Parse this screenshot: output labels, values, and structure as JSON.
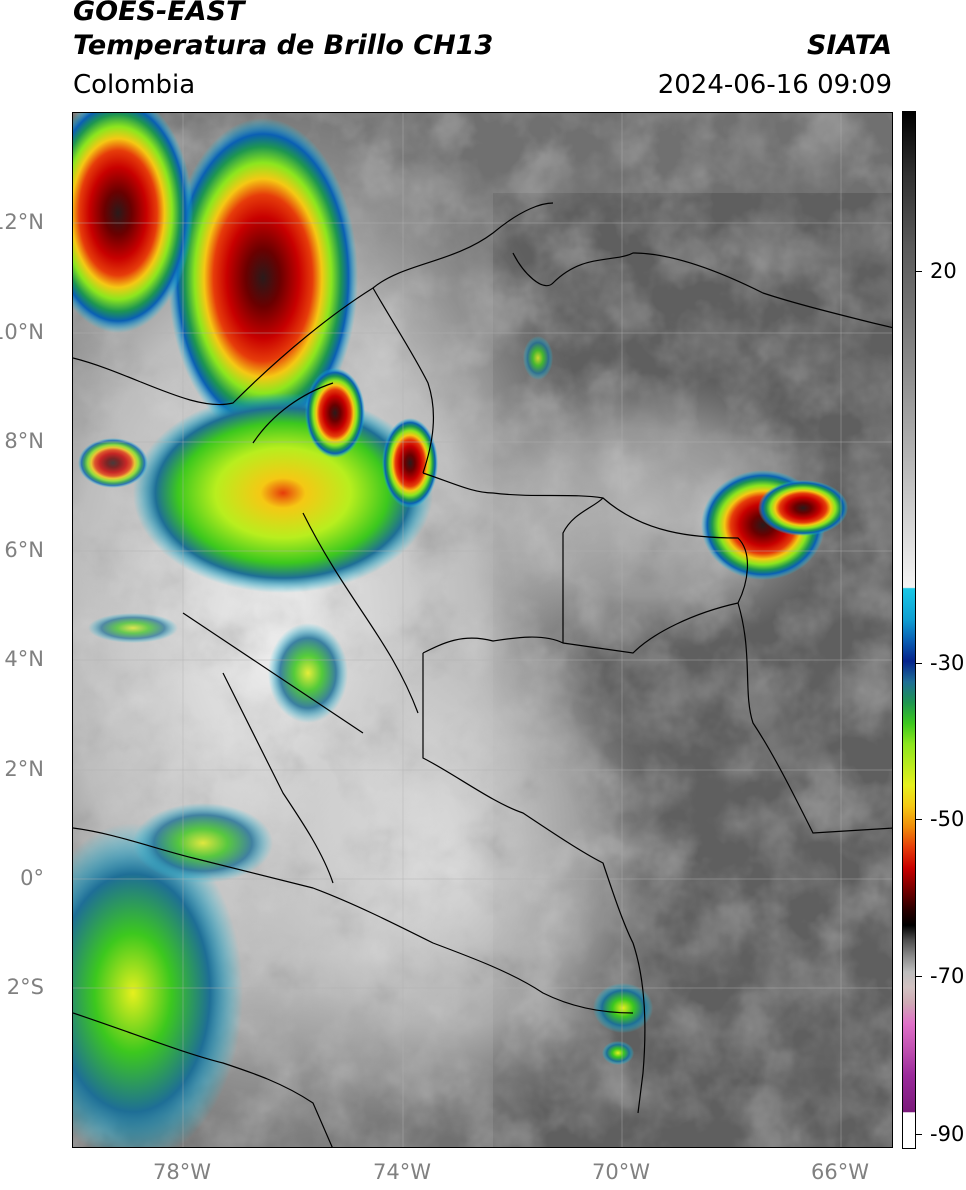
{
  "header": {
    "satellite": "GOES-EAST",
    "product": "Temperatura de Brillo CH13",
    "region": "Colombia",
    "agency": "SIATA",
    "datetime": "2024-06-16 09:09"
  },
  "map": {
    "lat_ticks": [
      "12°N",
      "10°N",
      "8°N",
      "6°N",
      "4°N",
      "2°N",
      "0°",
      "2°S"
    ],
    "lon_ticks": [
      "78°W",
      "74°W",
      "70°W",
      "66°W"
    ],
    "extent": {
      "lon": [
        -80,
        -65
      ],
      "lat": [
        -4.9,
        14
      ]
    },
    "gridlines": true,
    "background_color": "#6e6e6e",
    "border_color": "#000000"
  },
  "colorbar": {
    "labels": [
      "20",
      "-30",
      "-50",
      "-70",
      "-90"
    ],
    "units_range": [
      -92,
      30
    ],
    "colors": {
      "warm": "#000000",
      "mid": "#8c8c8c",
      "cold_start": "#19c8e6",
      "deep_blue": "#05238c",
      "green": "#3cc81e",
      "yellow": "#e6f01e",
      "red": "#c80000",
      "magenta": "#e070c8",
      "purple": "#7a1a7a"
    }
  },
  "storms": [
    {
      "name": "caribbean-storm",
      "type": "red-core"
    },
    {
      "name": "choco-storm",
      "type": "yellow-green"
    },
    {
      "name": "venezuela-storm",
      "type": "red-core"
    },
    {
      "name": "santander-storm",
      "type": "red-core"
    },
    {
      "name": "pacific-convection",
      "type": "green"
    },
    {
      "name": "amazon-cell",
      "type": "green"
    }
  ]
}
